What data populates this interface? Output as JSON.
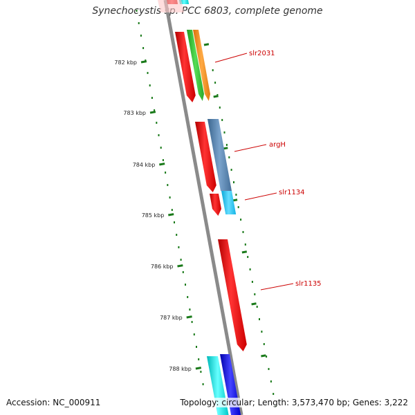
{
  "title": "Synechocystis sp. PCC 6803, complete genome",
  "footer": {
    "accession": "Accession: NC_000911",
    "summary": "Topology: circular; Length: 3,573,470 bp; Genes: 3,222"
  },
  "ruler_labels": [
    "782 kbp",
    "783 kbp",
    "784 kbp",
    "785 kbp",
    "786 kbp",
    "787 kbp",
    "788 kbp"
  ],
  "gene_labels": [
    "slr2031",
    "argH",
    "slr1134",
    "slr1135"
  ],
  "colors": {
    "backbone": "#8a8a8a",
    "ruler": "#1a7a1a",
    "label": "#cc0000",
    "red_gene": "#ff1a1a",
    "green_gene": "#33cc33",
    "orange_gene": "#ff9922",
    "steel_gene": "#4f7fb0",
    "cyan_gene": "#22ccff",
    "aqua_gene": "#00e6e6",
    "blue_gene": "#1111ee",
    "pink_gene": "#ffc8c8"
  }
}
